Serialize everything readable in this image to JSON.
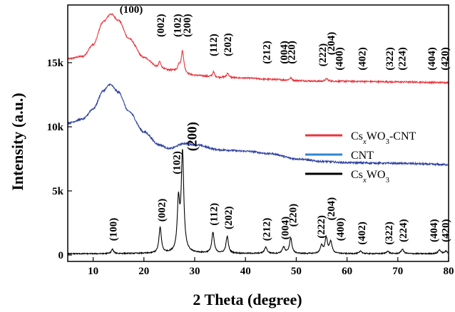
{
  "chart_data": {
    "type": "line",
    "xlabel": "2 Theta (degree)",
    "ylabel": "Intensity (a.u.)",
    "xlim": [
      5,
      80
    ],
    "ylim": [
      -500,
      19500
    ],
    "x_ticks": [
      10,
      20,
      30,
      40,
      50,
      60,
      70,
      80
    ],
    "y_ticks": [
      {
        "value": 0,
        "label": "0"
      },
      {
        "value": 5000,
        "label": "5k"
      },
      {
        "value": 10000,
        "label": "10k"
      },
      {
        "value": 15000,
        "label": "15k"
      }
    ],
    "grid": false,
    "legend_position": "right",
    "legend": [
      {
        "name_parts": [
          [
            "Cs",
            "n"
          ],
          [
            "x",
            "sub-i"
          ],
          [
            "WO",
            "n"
          ],
          [
            "3",
            "sub"
          ],
          [
            "-CNT",
            "n"
          ]
        ],
        "color": "#e8343c"
      },
      {
        "name_parts": [
          [
            "CNT",
            "n"
          ]
        ],
        "color": "#2e86d4"
      },
      {
        "name_parts": [
          [
            "Cs",
            "n"
          ],
          [
            "x",
            "sub-i"
          ],
          [
            "WO",
            "n"
          ],
          [
            "3",
            "sub"
          ]
        ],
        "color": "#000000"
      }
    ],
    "series": [
      {
        "color": "#e8343c",
        "baseline": [
          [
            5,
            15300
          ],
          [
            8,
            15500
          ],
          [
            10,
            16400
          ],
          [
            12,
            18200
          ],
          [
            13.5,
            18800
          ],
          [
            15,
            18300
          ],
          [
            17,
            16900
          ],
          [
            20,
            15400
          ],
          [
            23,
            14600
          ],
          [
            25,
            14400
          ],
          [
            30,
            14000
          ],
          [
            35,
            13850
          ],
          [
            40,
            13800
          ],
          [
            45,
            13700
          ],
          [
            50,
            13600
          ],
          [
            55,
            13550
          ],
          [
            60,
            13550
          ],
          [
            70,
            13500
          ],
          [
            80,
            13450
          ]
        ],
        "noise": 60,
        "peaks": [
          [
            23.1,
            500,
            0.25
          ],
          [
            26.9,
            500,
            0.25
          ],
          [
            27.6,
            1700,
            0.3
          ],
          [
            33.7,
            400,
            0.25
          ],
          [
            36.5,
            350,
            0.25
          ],
          [
            56.0,
            200,
            0.3
          ],
          [
            48.9,
            200,
            0.3
          ]
        ]
      },
      {
        "color": "#2e41a0",
        "baseline": [
          [
            5,
            10300
          ],
          [
            8,
            10600
          ],
          [
            10,
            11400
          ],
          [
            12,
            12800
          ],
          [
            13.3,
            13300
          ],
          [
            15,
            12700
          ],
          [
            17,
            11200
          ],
          [
            20,
            9600
          ],
          [
            23,
            8600
          ],
          [
            25,
            8300
          ],
          [
            28,
            8700
          ],
          [
            30,
            8600
          ],
          [
            35,
            8200
          ],
          [
            40,
            8100
          ],
          [
            45,
            7900
          ],
          [
            50,
            7500
          ],
          [
            55,
            7300
          ],
          [
            60,
            7200
          ],
          [
            70,
            7150
          ],
          [
            80,
            7050
          ]
        ],
        "noise": 70,
        "peaks": []
      },
      {
        "color": "#000000",
        "baseline": [
          [
            5,
            100
          ],
          [
            10,
            100
          ],
          [
            20,
            120
          ],
          [
            30,
            150
          ],
          [
            40,
            120
          ],
          [
            50,
            100
          ],
          [
            60,
            100
          ],
          [
            70,
            100
          ],
          [
            80,
            100
          ]
        ],
        "noise": 40,
        "peaks": [
          [
            13.8,
            350,
            0.25
          ],
          [
            23.2,
            2000,
            0.28
          ],
          [
            26.8,
            3800,
            0.28
          ],
          [
            27.6,
            7700,
            0.3
          ],
          [
            33.6,
            1600,
            0.28
          ],
          [
            36.4,
            1300,
            0.28
          ],
          [
            44.0,
            500,
            0.3
          ],
          [
            47.5,
            500,
            0.3
          ],
          [
            48.9,
            1200,
            0.3
          ],
          [
            55.0,
            600,
            0.3
          ],
          [
            55.9,
            1200,
            0.3
          ],
          [
            56.8,
            900,
            0.3
          ],
          [
            62.7,
            200,
            0.3
          ],
          [
            68.0,
            200,
            0.3
          ],
          [
            70.9,
            350,
            0.3
          ],
          [
            78.2,
            300,
            0.3
          ],
          [
            79.5,
            200,
            0.3
          ]
        ]
      }
    ],
    "annotations": [
      {
        "text": "(100)",
        "x": 17.5,
        "y": 18900,
        "rotate": false,
        "size": 15
      },
      {
        "text": "(002)",
        "x": 23.2,
        "y": 17000,
        "rotate": true,
        "size": 15
      },
      {
        "text": "(102)",
        "x": 26.5,
        "y": 17000,
        "rotate": true,
        "size": 15
      },
      {
        "text": "(200)",
        "x": 28.4,
        "y": 17000,
        "rotate": true,
        "size": 15
      },
      {
        "text": "(112)",
        "x": 33.6,
        "y": 15500,
        "rotate": true,
        "size": 15
      },
      {
        "text": "(202)",
        "x": 36.4,
        "y": 15500,
        "rotate": true,
        "size": 15
      },
      {
        "text": "(212)",
        "x": 44.1,
        "y": 14900,
        "rotate": true,
        "size": 15
      },
      {
        "text": "(004)",
        "x": 47.5,
        "y": 14900,
        "rotate": true,
        "size": 15
      },
      {
        "text": "(220)",
        "x": 49.0,
        "y": 14900,
        "rotate": true,
        "size": 15
      },
      {
        "text": "(222)",
        "x": 55.1,
        "y": 14700,
        "rotate": true,
        "size": 15
      },
      {
        "text": "(204)",
        "x": 56.8,
        "y": 15600,
        "rotate": true,
        "size": 15
      },
      {
        "text": "(400)",
        "x": 58.4,
        "y": 14400,
        "rotate": true,
        "size": 15
      },
      {
        "text": "(402)",
        "x": 62.9,
        "y": 14400,
        "rotate": true,
        "size": 15
      },
      {
        "text": "(322)",
        "x": 68.3,
        "y": 14400,
        "rotate": true,
        "size": 15
      },
      {
        "text": "(224)",
        "x": 70.8,
        "y": 14400,
        "rotate": true,
        "size": 15
      },
      {
        "text": "(404)",
        "x": 76.6,
        "y": 14400,
        "rotate": true,
        "size": 15
      },
      {
        "text": "(420)",
        "x": 79.2,
        "y": 14400,
        "rotate": true,
        "size": 15
      },
      {
        "text": "(100)",
        "x": 13.9,
        "y": 1100,
        "rotate": true,
        "size": 15
      },
      {
        "text": "(002)",
        "x": 23.4,
        "y": 2600,
        "rotate": true,
        "size": 15
      },
      {
        "text": "(102)",
        "x": 26.4,
        "y": 6300,
        "rotate": true,
        "size": 15
      },
      {
        "text": "(200)",
        "x": 29.4,
        "y": 8100,
        "rotate": true,
        "size": 19
      },
      {
        "text": "(112)",
        "x": 33.7,
        "y": 2300,
        "rotate": true,
        "size": 15
      },
      {
        "text": "(202)",
        "x": 36.6,
        "y": 2000,
        "rotate": true,
        "size": 15
      },
      {
        "text": "(212)",
        "x": 44.1,
        "y": 1100,
        "rotate": true,
        "size": 15
      },
      {
        "text": "(004)",
        "x": 47.7,
        "y": 1200,
        "rotate": true,
        "size": 15
      },
      {
        "text": "(220)",
        "x": 49.3,
        "y": 2200,
        "rotate": true,
        "size": 15
      },
      {
        "text": "(222)",
        "x": 54.8,
        "y": 1300,
        "rotate": true,
        "size": 15
      },
      {
        "text": "(204)",
        "x": 56.8,
        "y": 2700,
        "rotate": true,
        "size": 15
      },
      {
        "text": "(400)",
        "x": 58.6,
        "y": 1100,
        "rotate": true,
        "size": 15
      },
      {
        "text": "(402)",
        "x": 62.8,
        "y": 800,
        "rotate": true,
        "size": 15
      },
      {
        "text": "(322)",
        "x": 68.2,
        "y": 800,
        "rotate": true,
        "size": 15
      },
      {
        "text": "(224)",
        "x": 71.0,
        "y": 1000,
        "rotate": true,
        "size": 15
      },
      {
        "text": "(404)",
        "x": 77.0,
        "y": 1000,
        "rotate": true,
        "size": 15
      },
      {
        "text": "(420)",
        "x": 79.3,
        "y": 1000,
        "rotate": true,
        "size": 15
      }
    ]
  }
}
